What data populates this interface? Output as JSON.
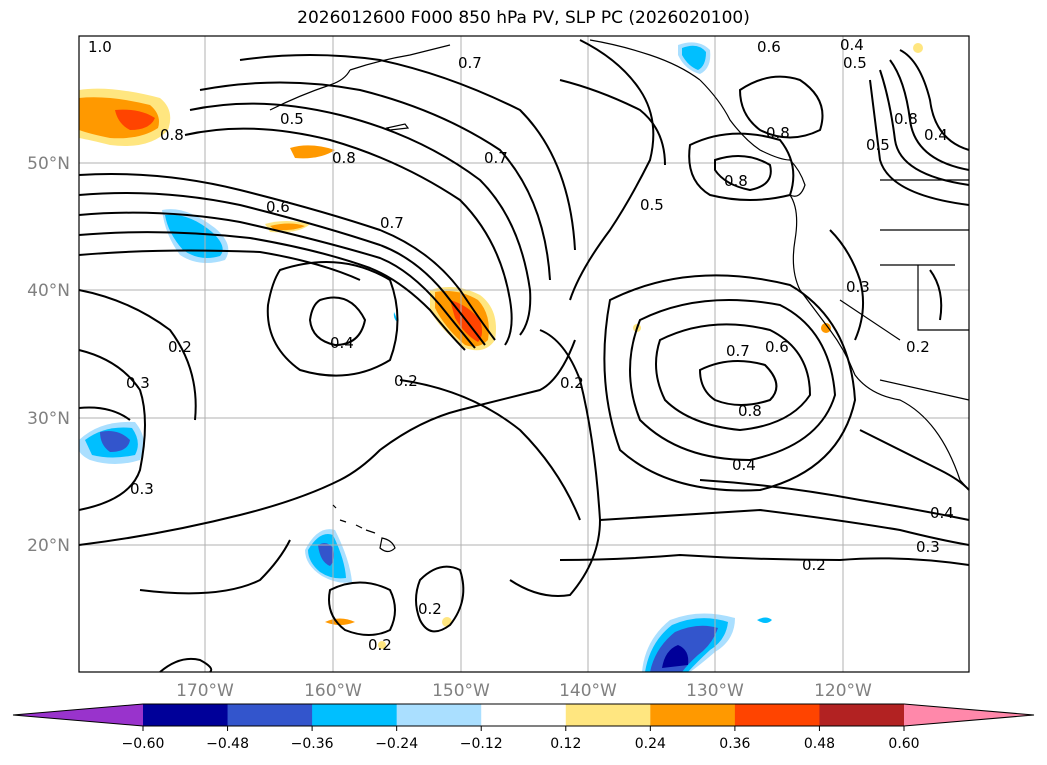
{
  "title": "2026012600 F000 850 hPa PV, SLP PC (2026020100)",
  "map": {
    "lon_labels": [
      "170°W",
      "160°W",
      "150°W",
      "140°W",
      "130°W",
      "120°W"
    ],
    "lat_labels": [
      "50°N",
      "40°N",
      "30°N",
      "20°N"
    ],
    "contour_labels": [
      "1.0",
      "0.8",
      "0.5",
      "0.7",
      "0.7",
      "0.6",
      "0.4",
      "0.5",
      "0.8",
      "0.8",
      "0.5",
      "0.8",
      "0.6",
      "0.7",
      "0.5",
      "0.4",
      "0.2",
      "0.2",
      "0.7",
      "0.6",
      "0.8",
      "0.4",
      "0.3",
      "0.2",
      "0.3",
      "0.3",
      "0.2",
      "0.2",
      "0.2",
      "0.4",
      "0.3",
      "0.2",
      "0.8",
      "0.4"
    ]
  },
  "colorbar": {
    "ticks": [
      "−0.60",
      "−0.48",
      "−0.36",
      "−0.24",
      "−0.12",
      "0.12",
      "0.24",
      "0.36",
      "0.48",
      "0.60"
    ],
    "colors": [
      "#9933cc",
      "#000099",
      "#3355cc",
      "#00bfff",
      "#aadfff",
      "#ffffff",
      "#ffe680",
      "#ff9900",
      "#ff4400",
      "#b22222",
      "#ff88aa"
    ]
  }
}
